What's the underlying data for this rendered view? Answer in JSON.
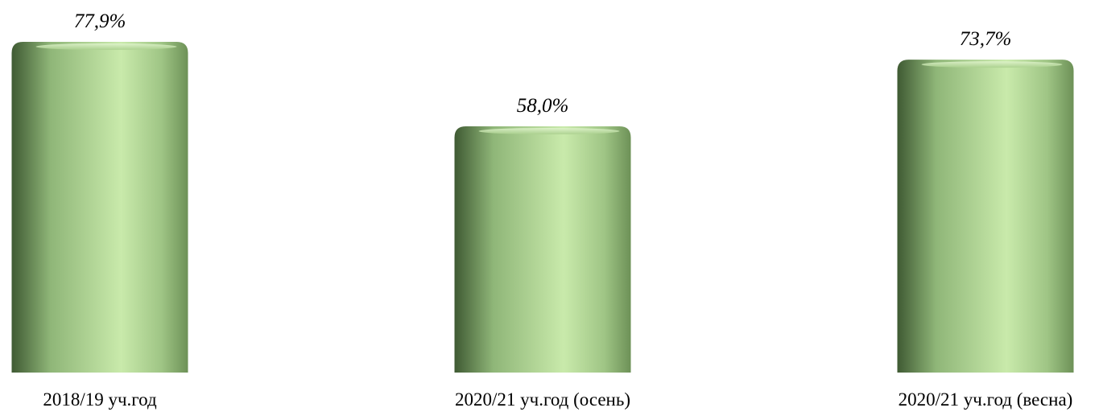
{
  "chart_data": {
    "type": "bar",
    "style": "cylinder",
    "categories": [
      "2018/19 уч.год",
      "2020/21 уч.год (осень)",
      "2020/21 уч.год (весна)"
    ],
    "values": [
      77.9,
      58.0,
      73.7
    ],
    "value_labels": [
      "77,9%",
      "58,0%",
      "73,7%"
    ],
    "unit": "%",
    "ylim": [
      0,
      100
    ],
    "grid": false,
    "legend": "none",
    "colors": {
      "dark": "#3f5a33",
      "mid": "#8fb678",
      "light": "#c9eaab",
      "top": "#b8dc99"
    }
  }
}
